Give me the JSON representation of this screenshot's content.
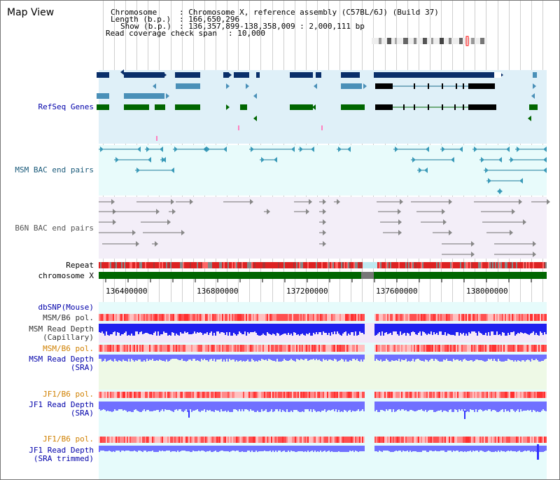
{
  "title": "Map View",
  "info": {
    "chromosome_label": "Chromosome",
    "chromosome_value": ": Chromosome X, reference assembly (C57BL/6J) (Build 37)",
    "length_label": "Length (b.p.)",
    "length_value": ": 166,650,296",
    "show_label": "Show (b.p.)",
    "show_value": ": 136,357,899-138,358,009 : 2,000,111 bp",
    "span_label": "Read coverage check span",
    "span_value": ": 10,000"
  },
  "tracks": {
    "refseq": "RefSeq Genes",
    "msm_bac": "MSM BAC end pairs",
    "b6n_bac": "B6N BAC end pairs",
    "repeat": "Repeat",
    "chromosome": "chromosome X",
    "dbsnp": "dbSNP(Mouse)",
    "msm_b6_pol_1": "MSM/B6 pol.",
    "msm_depth_cap_1": "MSM Read Depth",
    "msm_depth_cap_2": "(Capillary)",
    "msm_b6_pol_2": "MSM/B6 pol.",
    "msm_depth_sra_1": "MSM Read Depth",
    "msm_depth_sra_2": "(SRA)",
    "jf1_pol_1": "JF1/B6 pol.",
    "jf1_depth_sra_1": "JF1 Read Depth",
    "jf1_depth_sra_2": "(SRA)",
    "jf1_pol_2": "JF1/B6 pol.",
    "jf1_depth_trim_1": "JF1 Read Depth",
    "jf1_depth_trim_2": "(SRA trimmed)"
  },
  "axis": {
    "ticks": [
      "136400000",
      "136800000",
      "137200000",
      "137600000",
      "138000000"
    ]
  },
  "colors": {
    "refseq_bg": "#dff0f8",
    "msm_bg": "#e8fbfb",
    "b6n_bg": "#f3eef8",
    "refseq_dark": "#0a2f6a",
    "refseq_mid": "#4a90b8",
    "refseq_green": "#006600",
    "msm_line": "#1a7a9a",
    "b6n_line": "#707070",
    "label_blue": "#0000aa",
    "label_orange": "#d08000",
    "chromosome_green": "#006600",
    "snp_red": "#ff6060",
    "depth_blue": "#2020ee",
    "depth_light": "#7070ff"
  }
}
